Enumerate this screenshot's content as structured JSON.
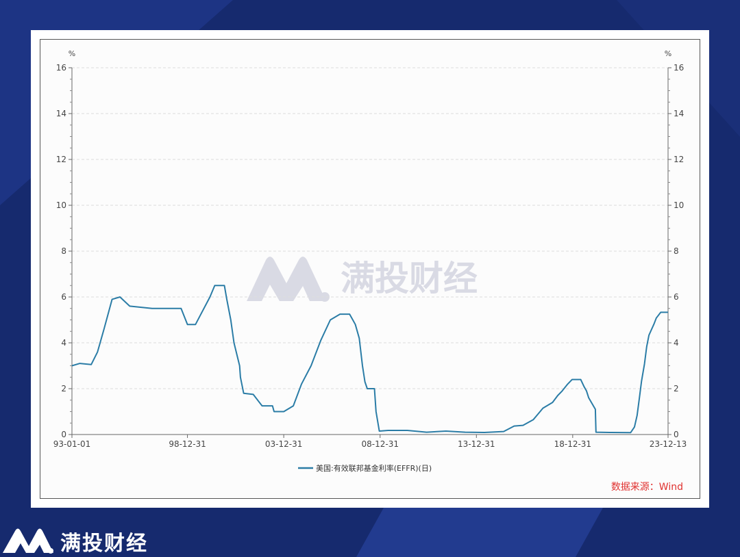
{
  "brand": {
    "name": "满投财经",
    "watermark": "满投财经"
  },
  "source_note": "数据来源：Wind",
  "colors": {
    "background": "#162a6e",
    "line": "#2a7ca6",
    "source_text": "#e0312f",
    "watermark": "#d9dae4"
  },
  "chart_data": {
    "type": "line",
    "y_unit_left": "%",
    "y_unit_right": "%",
    "ylim": [
      0,
      16
    ],
    "y_ticks": [
      0,
      2,
      4,
      6,
      8,
      10,
      12,
      14,
      16
    ],
    "xlim": [
      "1993-01-01",
      "2023-12-13"
    ],
    "x_tick_labels": [
      "93-01-01",
      "98-12-31",
      "03-12-31",
      "08-12-31",
      "13-12-31",
      "18-12-31",
      "23-12-13"
    ],
    "x_tick_dates": [
      "1993-01-01",
      "1998-12-31",
      "2003-12-31",
      "2008-12-31",
      "2013-12-31",
      "2018-12-31",
      "2023-12-13"
    ],
    "grid": true,
    "legend_position": "bottom",
    "series": [
      {
        "name": "美国:有效联邦基金利率(EFFR)(日)",
        "x": [
          "1993-01-01",
          "1993-06-01",
          "1994-01-01",
          "1994-05-01",
          "1994-09-01",
          "1995-02-01",
          "1995-07-01",
          "1996-01-01",
          "1997-03-01",
          "1998-09-01",
          "1998-12-31",
          "1999-06-01",
          "1999-09-01",
          "2000-03-01",
          "2000-06-01",
          "2000-12-01",
          "2001-01-15",
          "2001-04-01",
          "2001-06-01",
          "2001-09-15",
          "2001-10-01",
          "2001-12-01",
          "2002-06-01",
          "2002-11-15",
          "2003-01-01",
          "2003-06-01",
          "2003-07-01",
          "2004-01-01",
          "2004-06-30",
          "2004-12-01",
          "2005-06-01",
          "2005-12-01",
          "2006-06-01",
          "2006-12-01",
          "2007-06-01",
          "2007-08-01",
          "2007-09-18",
          "2007-12-01",
          "2008-01-31",
          "2008-03-18",
          "2008-05-01",
          "2008-09-15",
          "2008-10-15",
          "2008-12-16",
          "2009-06-01",
          "2010-06-01",
          "2011-06-01",
          "2012-06-01",
          "2013-06-01",
          "2014-06-01",
          "2015-06-01",
          "2015-12-17",
          "2016-06-01",
          "2016-12-15",
          "2017-03-16",
          "2017-06-15",
          "2017-12-14",
          "2018-03-22",
          "2018-06-14",
          "2018-09-27",
          "2018-12-20",
          "2019-06-01",
          "2019-08-01",
          "2019-09-19",
          "2019-10-31",
          "2020-03-04",
          "2020-03-16",
          "2021-01-01",
          "2022-01-01",
          "2022-03-17",
          "2022-05-05",
          "2022-06-16",
          "2022-07-28",
          "2022-09-22",
          "2022-11-03",
          "2022-12-15",
          "2023-02-02",
          "2023-03-23",
          "2023-05-04",
          "2023-07-27",
          "2023-12-13"
        ],
        "values": [
          3.0,
          3.1,
          3.05,
          3.6,
          4.6,
          5.9,
          6.0,
          5.6,
          5.5,
          5.5,
          4.8,
          4.8,
          5.2,
          6.0,
          6.5,
          6.5,
          5.9,
          5.0,
          4.0,
          3.0,
          2.5,
          1.8,
          1.75,
          1.25,
          1.25,
          1.25,
          1.0,
          1.0,
          1.25,
          2.2,
          3.0,
          4.1,
          5.0,
          5.25,
          5.25,
          5.0,
          4.8,
          4.2,
          3.0,
          2.3,
          2.0,
          2.0,
          1.0,
          0.15,
          0.18,
          0.18,
          0.1,
          0.15,
          0.1,
          0.09,
          0.13,
          0.37,
          0.4,
          0.65,
          0.9,
          1.15,
          1.4,
          1.7,
          1.9,
          2.2,
          2.4,
          2.4,
          2.1,
          1.9,
          1.6,
          1.1,
          0.1,
          0.09,
          0.08,
          0.33,
          0.83,
          1.58,
          2.33,
          3.08,
          3.83,
          4.33,
          4.58,
          4.83,
          5.08,
          5.33,
          5.33
        ]
      }
    ]
  }
}
